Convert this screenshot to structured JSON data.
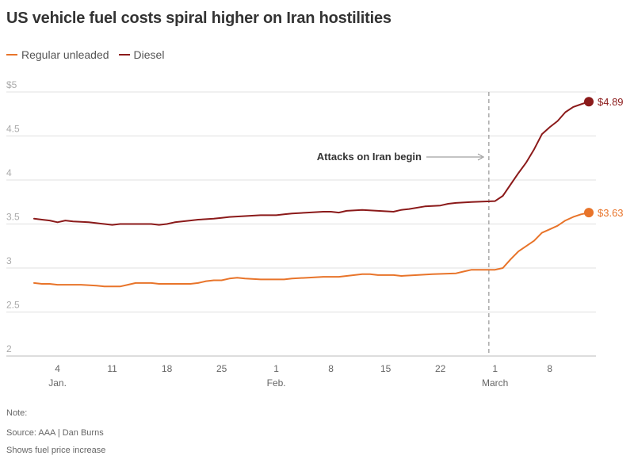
{
  "chart_data": {
    "type": "line",
    "title": "US vehicle fuel costs spiral higher on Iran hostilities",
    "ylim": [
      2,
      5
    ],
    "yticks": [
      "2",
      "2.5",
      "3",
      "3.5",
      "4",
      "4.5",
      "$5"
    ],
    "xlim": [
      "2026-01-01",
      "2026-03-13"
    ],
    "xticks": [
      {
        "date": "2026-01-04",
        "label": "4",
        "month": "Jan."
      },
      {
        "date": "2026-01-11",
        "label": "11",
        "month": ""
      },
      {
        "date": "2026-01-18",
        "label": "18",
        "month": ""
      },
      {
        "date": "2026-01-25",
        "label": "25",
        "month": ""
      },
      {
        "date": "2026-02-01",
        "label": "1",
        "month": "Feb."
      },
      {
        "date": "2026-02-08",
        "label": "8",
        "month": ""
      },
      {
        "date": "2026-02-15",
        "label": "15",
        "month": ""
      },
      {
        "date": "2026-02-22",
        "label": "22",
        "month": ""
      },
      {
        "date": "2026-03-01",
        "label": "1",
        "month": "March"
      },
      {
        "date": "2026-03-08",
        "label": "8",
        "month": ""
      }
    ],
    "legend": "top-left",
    "grid": true,
    "series": [
      {
        "name": "Regular unleaded",
        "color": "#e8742a",
        "end_label": "$3.63",
        "points": [
          [
            "2026-01-01",
            2.83
          ],
          [
            "2026-01-02",
            2.82
          ],
          [
            "2026-01-03",
            2.82
          ],
          [
            "2026-01-04",
            2.81
          ],
          [
            "2026-01-05",
            2.81
          ],
          [
            "2026-01-07",
            2.81
          ],
          [
            "2026-01-09",
            2.8
          ],
          [
            "2026-01-10",
            2.79
          ],
          [
            "2026-01-11",
            2.79
          ],
          [
            "2026-01-12",
            2.79
          ],
          [
            "2026-01-13",
            2.81
          ],
          [
            "2026-01-14",
            2.83
          ],
          [
            "2026-01-16",
            2.83
          ],
          [
            "2026-01-17",
            2.82
          ],
          [
            "2026-01-19",
            2.82
          ],
          [
            "2026-01-21",
            2.82
          ],
          [
            "2026-01-22",
            2.83
          ],
          [
            "2026-01-23",
            2.85
          ],
          [
            "2026-01-24",
            2.86
          ],
          [
            "2026-01-25",
            2.86
          ],
          [
            "2026-01-26",
            2.88
          ],
          [
            "2026-01-27",
            2.89
          ],
          [
            "2026-01-28",
            2.88
          ],
          [
            "2026-01-30",
            2.87
          ],
          [
            "2026-02-01",
            2.87
          ],
          [
            "2026-02-02",
            2.87
          ],
          [
            "2026-02-03",
            2.88
          ],
          [
            "2026-02-05",
            2.89
          ],
          [
            "2026-02-07",
            2.9
          ],
          [
            "2026-02-08",
            2.9
          ],
          [
            "2026-02-09",
            2.9
          ],
          [
            "2026-02-10",
            2.91
          ],
          [
            "2026-02-11",
            2.92
          ],
          [
            "2026-02-12",
            2.93
          ],
          [
            "2026-02-13",
            2.93
          ],
          [
            "2026-02-14",
            2.92
          ],
          [
            "2026-02-16",
            2.92
          ],
          [
            "2026-02-17",
            2.91
          ],
          [
            "2026-02-19",
            2.92
          ],
          [
            "2026-02-21",
            2.93
          ],
          [
            "2026-02-24",
            2.94
          ],
          [
            "2026-02-25",
            2.96
          ],
          [
            "2026-02-26",
            2.98
          ],
          [
            "2026-02-28",
            2.98
          ],
          [
            "2026-03-01",
            2.98
          ],
          [
            "2026-03-02",
            3.0
          ],
          [
            "2026-03-03",
            3.1
          ],
          [
            "2026-03-04",
            3.19
          ],
          [
            "2026-03-05",
            3.25
          ],
          [
            "2026-03-06",
            3.31
          ],
          [
            "2026-03-07",
            3.4
          ],
          [
            "2026-03-08",
            3.44
          ],
          [
            "2026-03-09",
            3.48
          ],
          [
            "2026-03-10",
            3.54
          ],
          [
            "2026-03-11",
            3.58
          ],
          [
            "2026-03-12",
            3.61
          ],
          [
            "2026-03-13",
            3.63
          ]
        ]
      },
      {
        "name": "Diesel",
        "color": "#8b1a1a",
        "end_label": "$4.89",
        "points": [
          [
            "2026-01-01",
            3.56
          ],
          [
            "2026-01-02",
            3.55
          ],
          [
            "2026-01-03",
            3.54
          ],
          [
            "2026-01-04",
            3.52
          ],
          [
            "2026-01-05",
            3.54
          ],
          [
            "2026-01-06",
            3.53
          ],
          [
            "2026-01-08",
            3.52
          ],
          [
            "2026-01-09",
            3.51
          ],
          [
            "2026-01-10",
            3.5
          ],
          [
            "2026-01-11",
            3.49
          ],
          [
            "2026-01-12",
            3.5
          ],
          [
            "2026-01-14",
            3.5
          ],
          [
            "2026-01-16",
            3.5
          ],
          [
            "2026-01-17",
            3.49
          ],
          [
            "2026-01-18",
            3.5
          ],
          [
            "2026-01-19",
            3.52
          ],
          [
            "2026-01-21",
            3.54
          ],
          [
            "2026-01-22",
            3.55
          ],
          [
            "2026-01-24",
            3.56
          ],
          [
            "2026-01-25",
            3.57
          ],
          [
            "2026-01-26",
            3.58
          ],
          [
            "2026-01-28",
            3.59
          ],
          [
            "2026-01-30",
            3.6
          ],
          [
            "2026-02-01",
            3.6
          ],
          [
            "2026-02-02",
            3.61
          ],
          [
            "2026-02-03",
            3.62
          ],
          [
            "2026-02-05",
            3.63
          ],
          [
            "2026-02-07",
            3.64
          ],
          [
            "2026-02-08",
            3.64
          ],
          [
            "2026-02-09",
            3.63
          ],
          [
            "2026-02-10",
            3.65
          ],
          [
            "2026-02-12",
            3.66
          ],
          [
            "2026-02-14",
            3.65
          ],
          [
            "2026-02-16",
            3.64
          ],
          [
            "2026-02-17",
            3.66
          ],
          [
            "2026-02-18",
            3.67
          ],
          [
            "2026-02-20",
            3.7
          ],
          [
            "2026-02-22",
            3.71
          ],
          [
            "2026-02-23",
            3.73
          ],
          [
            "2026-02-24",
            3.74
          ],
          [
            "2026-02-26",
            3.75
          ],
          [
            "2026-03-01",
            3.76
          ],
          [
            "2026-03-02",
            3.82
          ],
          [
            "2026-03-03",
            3.95
          ],
          [
            "2026-03-04",
            4.08
          ],
          [
            "2026-03-05",
            4.2
          ],
          [
            "2026-03-06",
            4.35
          ],
          [
            "2026-03-07",
            4.52
          ],
          [
            "2026-03-08",
            4.6
          ],
          [
            "2026-03-09",
            4.67
          ],
          [
            "2026-03-10",
            4.77
          ],
          [
            "2026-03-11",
            4.83
          ],
          [
            "2026-03-12",
            4.86
          ],
          [
            "2026-03-13",
            4.89
          ]
        ]
      }
    ],
    "annotation": {
      "text": "Attacks on Iran begin",
      "date": "2026-02-28"
    }
  },
  "footer": {
    "note": "Note:",
    "source": "Source: AAA | Dan Burns",
    "description": "Shows fuel price increase"
  }
}
